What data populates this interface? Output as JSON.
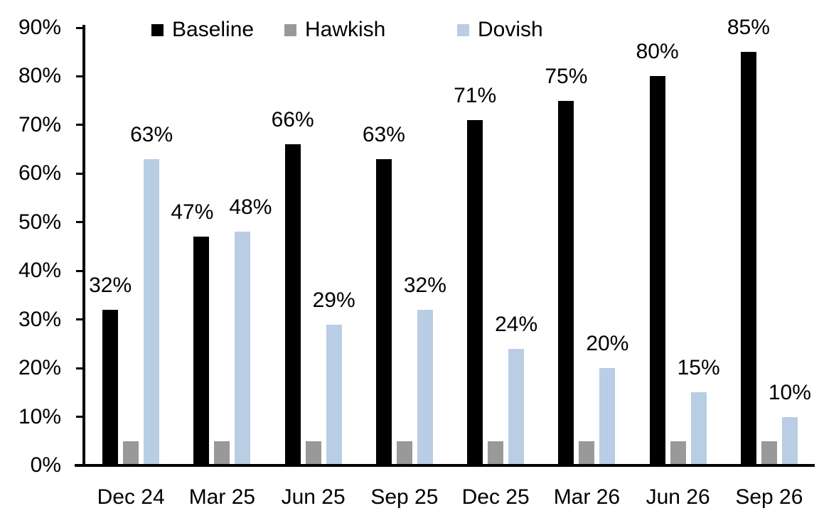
{
  "chart_data": {
    "type": "bar",
    "categories": [
      "Dec 24",
      "Mar 25",
      "Jun 25",
      "Sep 25",
      "Dec 25",
      "Mar 26",
      "Jun 26",
      "Sep 26"
    ],
    "series": [
      {
        "name": "Baseline",
        "color": "#000000",
        "values": [
          32,
          47,
          66,
          63,
          71,
          75,
          80,
          85
        ],
        "data_labels": [
          "32%",
          "47%",
          "66%",
          "63%",
          "71%",
          "75%",
          "80%",
          "85%"
        ]
      },
      {
        "name": "Hawkish",
        "color": "#999999",
        "values": [
          5,
          5,
          5,
          5,
          5,
          5,
          5,
          5
        ],
        "data_labels": [
          null,
          null,
          null,
          null,
          null,
          null,
          null,
          null
        ]
      },
      {
        "name": "Dovish",
        "color": "#B9CDE4",
        "values": [
          63,
          48,
          29,
          32,
          24,
          20,
          15,
          10
        ],
        "data_labels": [
          "63%",
          "48%",
          "29%",
          "32%",
          "24%",
          "20%",
          "15%",
          "10%"
        ]
      }
    ],
    "title": "",
    "xlabel": "",
    "ylabel": "",
    "ylim": [
      0,
      90
    ],
    "ytick_step": 10,
    "ytick_labels": [
      "0%",
      "10%",
      "20%",
      "30%",
      "40%",
      "50%",
      "60%",
      "70%",
      "80%",
      "90%"
    ],
    "legend_position": "top-inside",
    "grid": false,
    "axis_color": "#000000",
    "background": "#FFFFFF"
  }
}
